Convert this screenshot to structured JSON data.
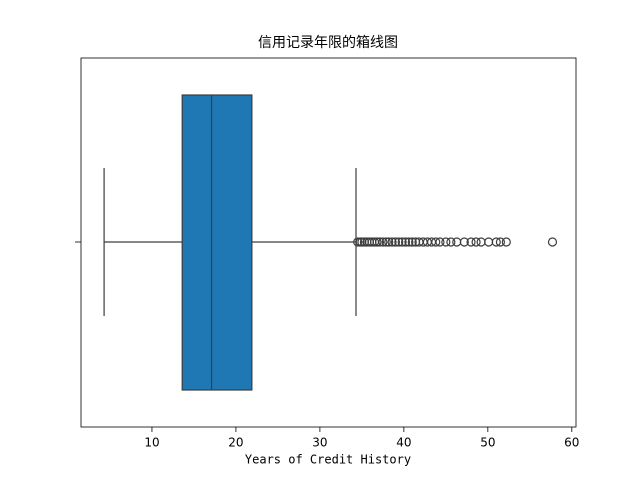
{
  "chart_data": {
    "type": "box",
    "title": "信用记录年限的箱线图",
    "xlabel": "Years of Credit History",
    "whislo": 4.3,
    "q1": 13.6,
    "med": 17.1,
    "q3": 21.9,
    "whishi": 34.3,
    "fliers": [
      34.5,
      34.8,
      35.0,
      35.3,
      35.6,
      35.9,
      36.2,
      36.5,
      36.8,
      37.1,
      37.5,
      37.9,
      38.2,
      38.6,
      39.0,
      39.4,
      39.8,
      40.2,
      40.6,
      41.0,
      41.4,
      41.8,
      42.3,
      42.8,
      43.3,
      43.8,
      44.3,
      45.0,
      45.6,
      46.3,
      47.2,
      48.0,
      48.6,
      49.2,
      50.1,
      51.0,
      51.5,
      52.2,
      57.7
    ],
    "color": "#1f77b4",
    "xlim": [
      1.55,
      60.5
    ],
    "xticks": [
      10,
      20,
      30,
      40,
      50,
      60
    ]
  }
}
